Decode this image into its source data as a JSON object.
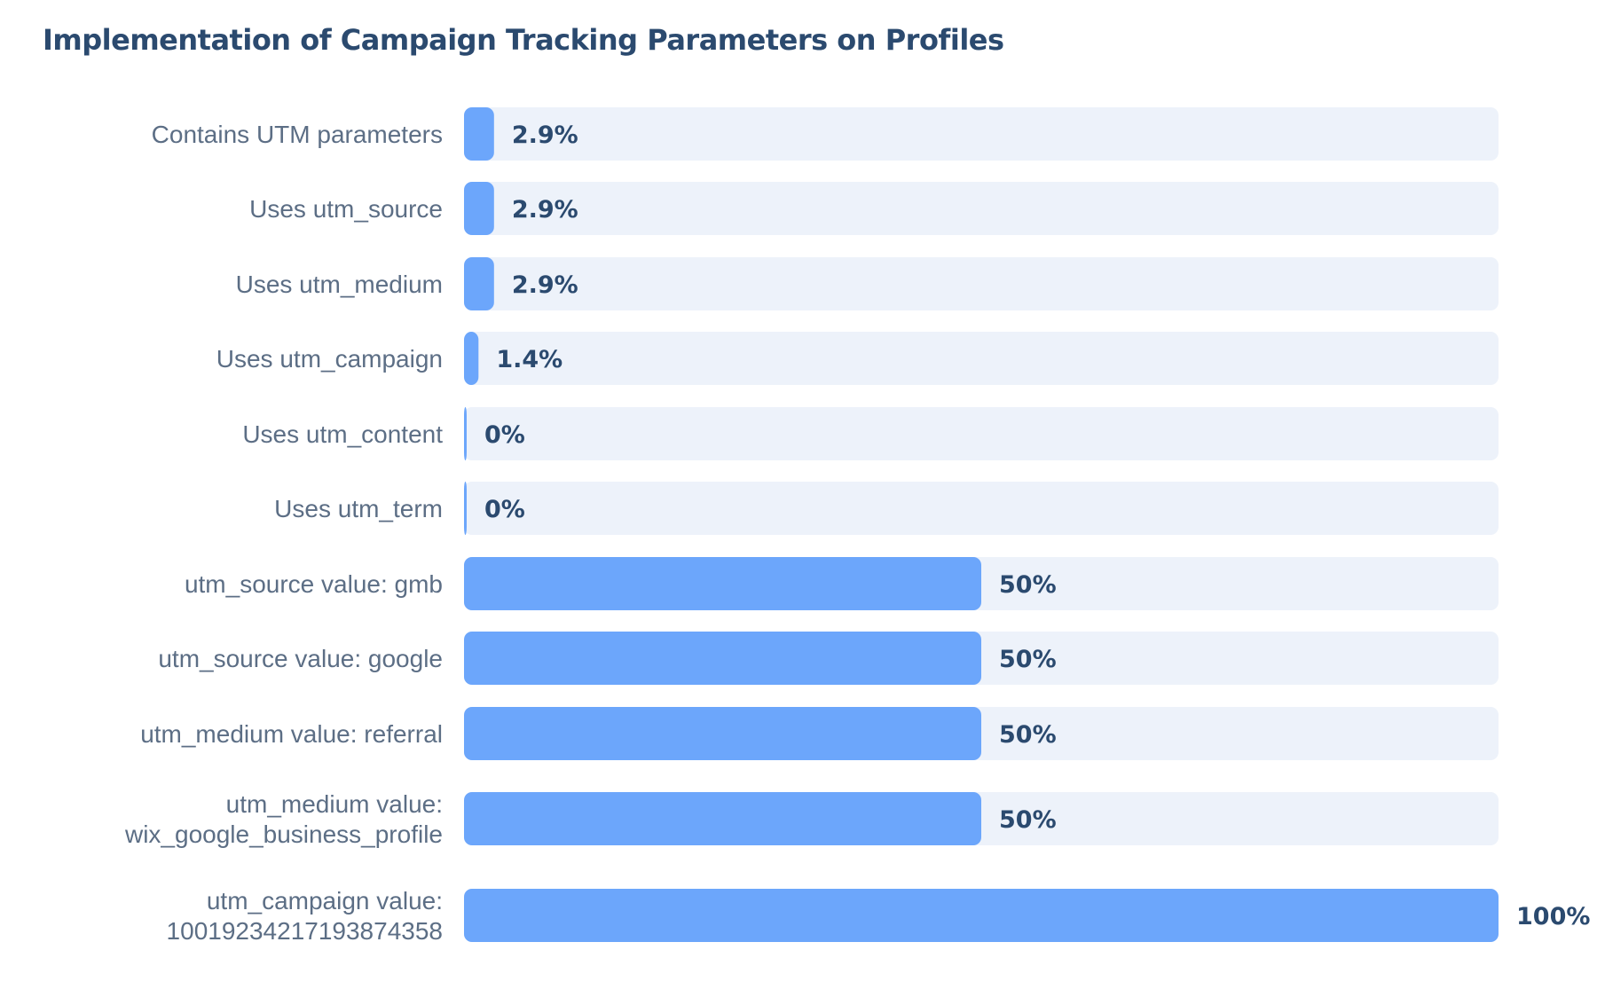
{
  "chart_data": {
    "type": "bar",
    "orientation": "horizontal",
    "title": "Implementation of Campaign Tracking Parameters on Profiles",
    "xlabel": "",
    "ylabel": "",
    "xlim": [
      0,
      100
    ],
    "grid": false,
    "legend": "none",
    "categories": [
      [
        "Contains UTM parameters"
      ],
      [
        "Uses utm_source"
      ],
      [
        "Uses utm_medium"
      ],
      [
        "Uses utm_campaign"
      ],
      [
        "Uses utm_content"
      ],
      [
        "Uses utm_term"
      ],
      [
        "utm_source value: gmb"
      ],
      [
        "utm_source value: google"
      ],
      [
        "utm_medium value: referral"
      ],
      [
        "utm_medium value:",
        "wix_google_business_profile"
      ],
      [
        "utm_campaign value:",
        "1001923421719387435­8"
      ]
    ],
    "values": [
      2.9,
      2.9,
      2.9,
      1.4,
      0,
      0,
      50,
      50,
      50,
      50,
      100
    ],
    "value_labels": [
      "2.9%",
      "2.9%",
      "2.9%",
      "1.4%",
      "0%",
      "0%",
      "50%",
      "50%",
      "50%",
      "50%",
      "100%"
    ],
    "colors": {
      "bar": "#6ca6fb",
      "track": "#edf2fa",
      "value_text": "#2b4a6f",
      "category_text": "#5c6e85",
      "title_text": "#2b4a6f"
    }
  }
}
